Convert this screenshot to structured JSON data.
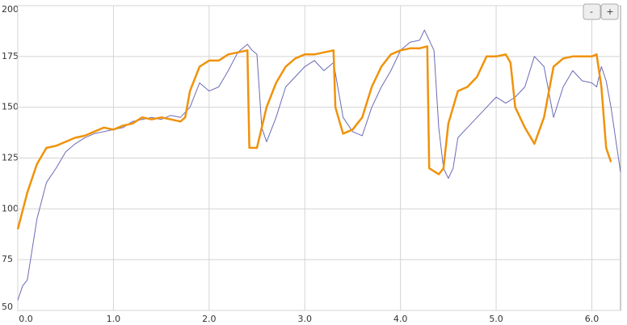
{
  "chart_data": {
    "type": "line",
    "xlim": [
      0,
      6.3
    ],
    "ylim": [
      50,
      200
    ],
    "xticks": [
      {
        "value": 0,
        "label": "0.0"
      },
      {
        "value": 1,
        "label": "1.0"
      },
      {
        "value": 2,
        "label": "2.0"
      },
      {
        "value": 3,
        "label": "3.0"
      },
      {
        "value": 4,
        "label": "4.0"
      },
      {
        "value": 5,
        "label": "5.0"
      },
      {
        "value": 6,
        "label": "6.0"
      }
    ],
    "yticks": [
      50,
      75,
      100,
      125,
      150,
      175,
      200
    ],
    "grid": true,
    "series": [
      {
        "color": "#6a6ab8",
        "width": 1,
        "x": [
          0,
          0.05,
          0.1,
          0.15,
          0.2,
          0.3,
          0.4,
          0.5,
          0.6,
          0.7,
          0.8,
          0.9,
          1.0,
          1.1,
          1.2,
          1.3,
          1.4,
          1.5,
          1.6,
          1.7,
          1.8,
          1.9,
          2.0,
          2.1,
          2.2,
          2.3,
          2.4,
          2.45,
          2.5,
          2.55,
          2.6,
          2.7,
          2.8,
          2.9,
          3.0,
          3.1,
          3.2,
          3.3,
          3.4,
          3.5,
          3.6,
          3.7,
          3.8,
          3.9,
          4.0,
          4.1,
          4.2,
          4.25,
          4.3,
          4.35,
          4.4,
          4.45,
          4.5,
          4.55,
          4.6,
          4.7,
          4.8,
          4.9,
          5.0,
          5.1,
          5.2,
          5.3,
          5.4,
          5.5,
          5.6,
          5.7,
          5.8,
          5.9,
          6.0,
          6.05,
          6.1,
          6.15,
          6.2,
          6.3
        ],
        "values": [
          55,
          62,
          65,
          80,
          95,
          113,
          120,
          128,
          132,
          135,
          137,
          138,
          139,
          140,
          143,
          144,
          145,
          144,
          146,
          145,
          150,
          162,
          158,
          160,
          168,
          177,
          181,
          178,
          176,
          140,
          133,
          145,
          160,
          165,
          170,
          173,
          168,
          172,
          145,
          138,
          136,
          150,
          160,
          168,
          178,
          182,
          183,
          188,
          183,
          178,
          140,
          120,
          115,
          120,
          135,
          140,
          145,
          150,
          155,
          152,
          155,
          160,
          175,
          170,
          145,
          160,
          168,
          163,
          162,
          160,
          170,
          163,
          150,
          118
        ]
      },
      {
        "color": "#f0920a",
        "width": 2.5,
        "x": [
          0,
          0.1,
          0.2,
          0.3,
          0.4,
          0.5,
          0.6,
          0.7,
          0.8,
          0.9,
          1.0,
          1.1,
          1.2,
          1.3,
          1.4,
          1.5,
          1.6,
          1.7,
          1.75,
          1.8,
          1.9,
          2.0,
          2.1,
          2.2,
          2.3,
          2.4,
          2.42,
          2.5,
          2.6,
          2.7,
          2.8,
          2.9,
          3.0,
          3.1,
          3.2,
          3.3,
          3.32,
          3.4,
          3.5,
          3.6,
          3.7,
          3.8,
          3.9,
          4.0,
          4.1,
          4.2,
          4.28,
          4.3,
          4.4,
          4.45,
          4.5,
          4.6,
          4.7,
          4.8,
          4.9,
          5.0,
          5.1,
          5.15,
          5.2,
          5.3,
          5.4,
          5.5,
          5.6,
          5.7,
          5.8,
          5.9,
          6.0,
          6.05,
          6.1,
          6.15,
          6.2
        ],
        "values": [
          90,
          108,
          122,
          130,
          131,
          133,
          135,
          136,
          138,
          140,
          139,
          141,
          142,
          145,
          144,
          145,
          144,
          143,
          145,
          158,
          170,
          173,
          173,
          176,
          177,
          178,
          130,
          130,
          150,
          162,
          170,
          174,
          176,
          176,
          177,
          178,
          150,
          137,
          139,
          145,
          160,
          170,
          176,
          178,
          179,
          179,
          180,
          120,
          117,
          120,
          142,
          158,
          160,
          165,
          175,
          175,
          176,
          172,
          150,
          140,
          132,
          145,
          170,
          174,
          175,
          175,
          175,
          176,
          160,
          130,
          123
        ]
      }
    ]
  },
  "zoom_controls": [
    "-",
    "+"
  ]
}
